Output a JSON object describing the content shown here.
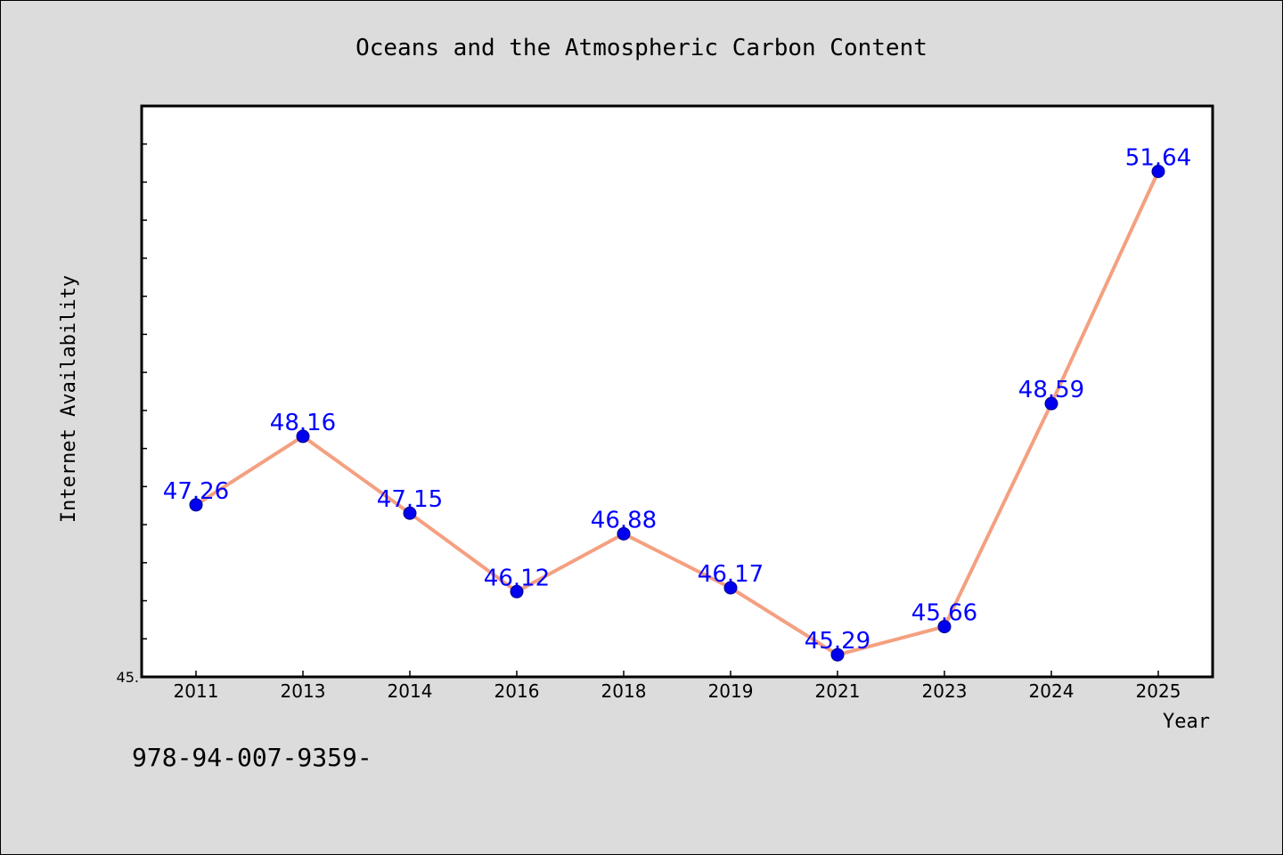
{
  "chart_data": {
    "type": "line",
    "title": "Oceans and the Atmospheric Carbon Content",
    "xlabel": "Year",
    "ylabel": "Internet Availability",
    "categories": [
      "2011",
      "2013",
      "2014",
      "2016",
      "2018",
      "2019",
      "2021",
      "2023",
      "2024",
      "2025"
    ],
    "values": [
      47.26,
      48.16,
      47.15,
      46.12,
      46.88,
      46.17,
      45.29,
      45.66,
      48.59,
      51.64
    ],
    "data_labels": [
      "47.26",
      "48.16",
      "47.15",
      "46.12",
      "46.88",
      "46.17",
      "45.29",
      "45.66",
      "48.59",
      "51.64"
    ],
    "ylim": [
      45.0,
      52.5
    ],
    "y_tick_label": "45.",
    "grid": false,
    "legend": "none",
    "colors": {
      "line": "#f4a080",
      "marker": "#0000ee",
      "label": "#0000ff",
      "plot_bg": "#ffffff",
      "page_bg": "#dcdcdc"
    }
  },
  "footnote": "978-94-007-9359-"
}
